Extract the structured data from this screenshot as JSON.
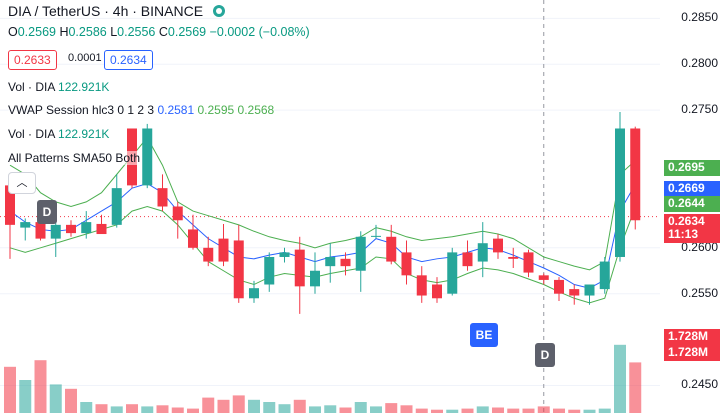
{
  "header": {
    "symbol": "DIA / TetherUS · 4h · BINANCE",
    "ohlc": {
      "o_key": "O",
      "o": "0.2569",
      "h_key": "H",
      "h": "0.2586",
      "l_key": "L",
      "l": "0.2556",
      "c_key": "C",
      "c": "0.2569",
      "change": "−0.0002 (−0.08%)"
    }
  },
  "trade": {
    "sell": "0.2633",
    "spread": "0.0001",
    "buy": "0.2634"
  },
  "indicators": {
    "vol1": {
      "name": "Vol · DIA",
      "value": "122.921K"
    },
    "vwap": {
      "name": "VWAP Session hlc3 0 1 2 3",
      "v1": "0.2581",
      "v2": "0.2595",
      "v3": "0.2568"
    },
    "vol2": {
      "name": "Vol · DIA",
      "value": "122.921K"
    },
    "patterns": {
      "name": "All Patterns SMA50 Both"
    }
  },
  "axis": {
    "ticks": [
      "0.2850",
      "0.2800",
      "0.2750",
      "0.2600",
      "0.2550",
      "0.2450"
    ],
    "tags": [
      {
        "text": "0.2695",
        "color": "#4caf50"
      },
      {
        "text": "0.2669",
        "color": "#2962ff"
      },
      {
        "text": "0.2644",
        "color": "#4caf50"
      },
      {
        "text": "0.2634",
        "color": "#f23645"
      },
      {
        "text": "11:13",
        "color": "#f23645"
      }
    ],
    "vol_tags": [
      {
        "text": "1.728M",
        "color": "#f23645"
      },
      {
        "text": "1.728M",
        "color": "#f23645"
      }
    ]
  },
  "markers": [
    {
      "label": "D",
      "color": "#5d606b"
    },
    {
      "label": "BE",
      "color": "#2962ff"
    },
    {
      "label": "D",
      "color": "#5d606b"
    }
  ],
  "icons": {
    "collapse": "chevron-up-icon",
    "market_status": "live-dot-icon"
  },
  "colors": {
    "up": "#26a69a",
    "down": "#f23645",
    "vwap": "#2962ff",
    "band": "#4caf50"
  },
  "chart_data": {
    "type": "candlestick",
    "candles": [
      {
        "o": 0.2668,
        "h": 0.267,
        "l": 0.2588,
        "c": 0.2625
      },
      {
        "o": 0.2622,
        "h": 0.2632,
        "l": 0.2608,
        "c": 0.2628
      },
      {
        "o": 0.2628,
        "h": 0.2642,
        "l": 0.2608,
        "c": 0.261
      },
      {
        "o": 0.261,
        "h": 0.2628,
        "l": 0.259,
        "c": 0.2625
      },
      {
        "o": 0.2625,
        "h": 0.263,
        "l": 0.2612,
        "c": 0.2616
      },
      {
        "o": 0.2616,
        "h": 0.264,
        "l": 0.261,
        "c": 0.2628
      },
      {
        "o": 0.2626,
        "h": 0.2636,
        "l": 0.2615,
        "c": 0.2615
      },
      {
        "o": 0.2625,
        "h": 0.268,
        "l": 0.2622,
        "c": 0.2665
      },
      {
        "o": 0.273,
        "h": 0.273,
        "l": 0.2665,
        "c": 0.2668
      },
      {
        "o": 0.2668,
        "h": 0.2735,
        "l": 0.2665,
        "c": 0.273
      },
      {
        "o": 0.2665,
        "h": 0.268,
        "l": 0.264,
        "c": 0.2645
      },
      {
        "o": 0.2645,
        "h": 0.265,
        "l": 0.261,
        "c": 0.263
      },
      {
        "o": 0.262,
        "h": 0.2636,
        "l": 0.2598,
        "c": 0.26
      },
      {
        "o": 0.26,
        "h": 0.2612,
        "l": 0.258,
        "c": 0.2585
      },
      {
        "o": 0.261,
        "h": 0.2626,
        "l": 0.258,
        "c": 0.2585
      },
      {
        "o": 0.2608,
        "h": 0.2625,
        "l": 0.254,
        "c": 0.2545
      },
      {
        "o": 0.2545,
        "h": 0.2564,
        "l": 0.254,
        "c": 0.2556
      },
      {
        "o": 0.256,
        "h": 0.2595,
        "l": 0.2552,
        "c": 0.259
      },
      {
        "o": 0.259,
        "h": 0.26,
        "l": 0.2584,
        "c": 0.2595
      },
      {
        "o": 0.2598,
        "h": 0.2612,
        "l": 0.2528,
        "c": 0.2558
      },
      {
        "o": 0.2558,
        "h": 0.2595,
        "l": 0.255,
        "c": 0.2575
      },
      {
        "o": 0.258,
        "h": 0.2605,
        "l": 0.2562,
        "c": 0.259
      },
      {
        "o": 0.2588,
        "h": 0.2595,
        "l": 0.257,
        "c": 0.258
      },
      {
        "o": 0.2575,
        "h": 0.2618,
        "l": 0.2552,
        "c": 0.2612
      },
      {
        "o": 0.2612,
        "h": 0.2625,
        "l": 0.261,
        "c": 0.2613
      },
      {
        "o": 0.2612,
        "h": 0.2625,
        "l": 0.2582,
        "c": 0.2585
      },
      {
        "o": 0.2595,
        "h": 0.2608,
        "l": 0.256,
        "c": 0.257
      },
      {
        "o": 0.257,
        "h": 0.258,
        "l": 0.254,
        "c": 0.2548
      },
      {
        "o": 0.256,
        "h": 0.2568,
        "l": 0.254,
        "c": 0.2545
      },
      {
        "o": 0.255,
        "h": 0.26,
        "l": 0.2548,
        "c": 0.2595
      },
      {
        "o": 0.2595,
        "h": 0.2608,
        "l": 0.2575,
        "c": 0.258
      },
      {
        "o": 0.2585,
        "h": 0.2628,
        "l": 0.2568,
        "c": 0.2605
      },
      {
        "o": 0.261,
        "h": 0.2615,
        "l": 0.2588,
        "c": 0.2595
      },
      {
        "o": 0.259,
        "h": 0.26,
        "l": 0.2578,
        "c": 0.2588
      },
      {
        "o": 0.2595,
        "h": 0.2598,
        "l": 0.2568,
        "c": 0.2573
      },
      {
        "o": 0.257,
        "h": 0.2572,
        "l": 0.256,
        "c": 0.2565
      },
      {
        "o": 0.2565,
        "h": 0.2568,
        "l": 0.2542,
        "c": 0.255
      },
      {
        "o": 0.2555,
        "h": 0.256,
        "l": 0.2538,
        "c": 0.2548
      },
      {
        "o": 0.2548,
        "h": 0.256,
        "l": 0.2538,
        "c": 0.256
      },
      {
        "o": 0.2555,
        "h": 0.259,
        "l": 0.255,
        "c": 0.2585
      },
      {
        "o": 0.259,
        "h": 0.2748,
        "l": 0.2585,
        "c": 0.273
      },
      {
        "o": 0.273,
        "h": 0.2732,
        "l": 0.262,
        "c": 0.263
      }
    ],
    "volume_relative": [
      0.42,
      0.3,
      0.48,
      0.26,
      0.22,
      0.1,
      0.08,
      0.06,
      0.08,
      0.06,
      0.07,
      0.05,
      0.04,
      0.14,
      0.12,
      0.16,
      0.12,
      0.1,
      0.08,
      0.12,
      0.06,
      0.07,
      0.05,
      0.1,
      0.06,
      0.09,
      0.07,
      0.04,
      0.03,
      0.03,
      0.04,
      0.06,
      0.05,
      0.04,
      0.04,
      0.06,
      0.04,
      0.03,
      0.03,
      0.04,
      0.62,
      0.46
    ],
    "vwap": [
      0.264,
      0.2628,
      0.262,
      0.2618,
      0.262,
      0.263,
      0.264,
      0.265,
      0.2665,
      0.267,
      0.266,
      0.264,
      0.2625,
      0.261,
      0.26,
      0.259,
      0.2588,
      0.2592,
      0.2595,
      0.259,
      0.2585,
      0.259,
      0.2592,
      0.2595,
      0.261,
      0.2605,
      0.259,
      0.2585,
      0.2588,
      0.259,
      0.2595,
      0.26,
      0.2598,
      0.2592,
      0.2585,
      0.2578,
      0.257,
      0.256,
      0.2556,
      0.2565,
      0.264,
      0.2669
    ],
    "band_upper": [
      0.269,
      0.268,
      0.266,
      0.265,
      0.2645,
      0.265,
      0.266,
      0.268,
      0.27,
      0.272,
      0.269,
      0.265,
      0.264,
      0.2635,
      0.263,
      0.2625,
      0.2618,
      0.2612,
      0.2608,
      0.2605,
      0.26,
      0.2605,
      0.2608,
      0.2612,
      0.2622,
      0.2618,
      0.2612,
      0.2608,
      0.261,
      0.2612,
      0.2615,
      0.2618,
      0.2615,
      0.261,
      0.26,
      0.259,
      0.2585,
      0.258,
      0.2576,
      0.2585,
      0.268,
      0.2695
    ],
    "band_lower": [
      0.26,
      0.2595,
      0.26,
      0.2605,
      0.261,
      0.2615,
      0.262,
      0.2625,
      0.264,
      0.2645,
      0.264,
      0.2625,
      0.2605,
      0.2585,
      0.2575,
      0.2565,
      0.256,
      0.2568,
      0.2572,
      0.257,
      0.2568,
      0.2572,
      0.2575,
      0.2578,
      0.259,
      0.2588,
      0.2572,
      0.2565,
      0.2562,
      0.2565,
      0.2572,
      0.2578,
      0.2576,
      0.2572,
      0.2566,
      0.256,
      0.2552,
      0.2545,
      0.254,
      0.2545,
      0.26,
      0.2644
    ],
    "price_range": [
      0.242,
      0.287
    ],
    "current_price": 0.2634
  }
}
